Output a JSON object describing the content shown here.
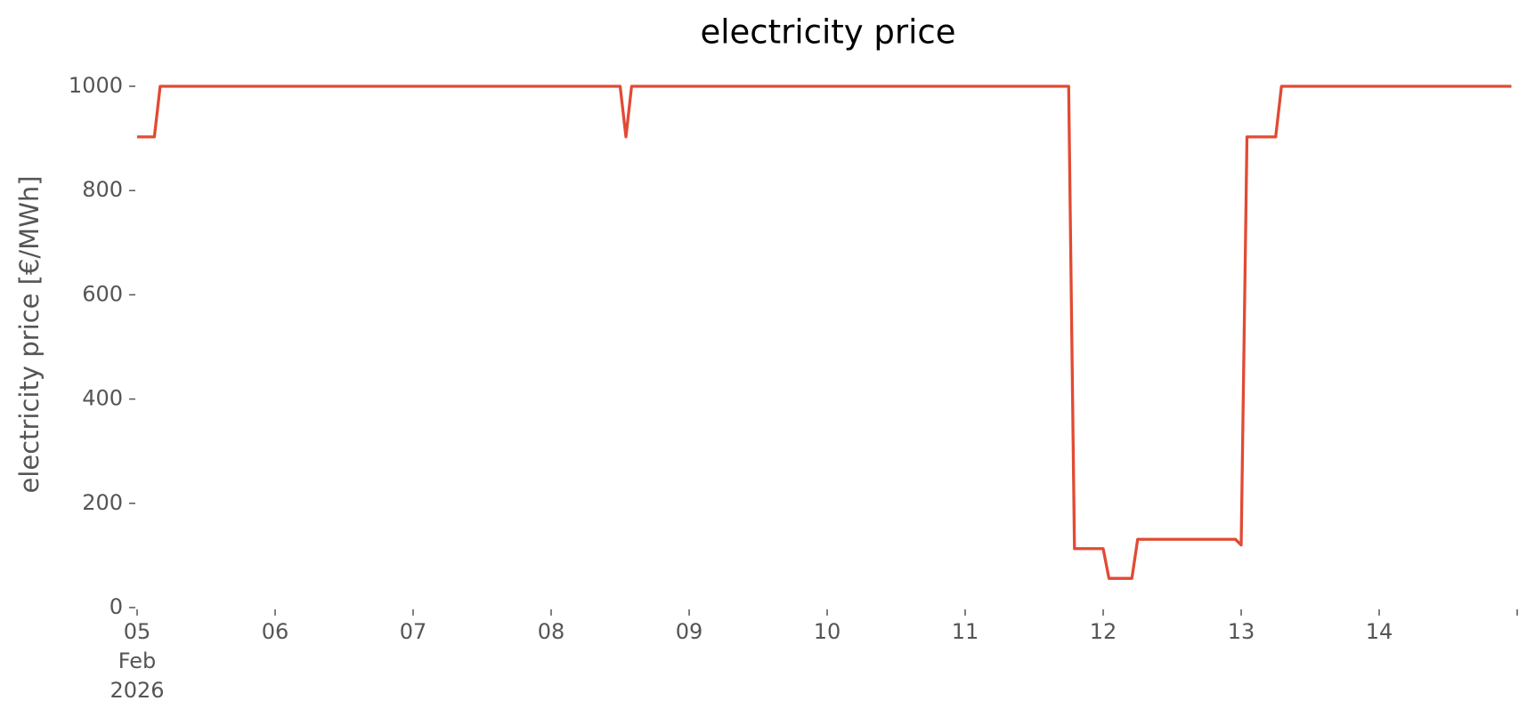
{
  "chart_data": {
    "type": "line",
    "title": "electricity price",
    "y_label": "electricity price [€/MWh]",
    "x": [
      5.0,
      5.125,
      5.167,
      8.5,
      8.542,
      8.583,
      11.75,
      11.792,
      12.0,
      12.042,
      12.208,
      12.25,
      12.958,
      13.0,
      13.042,
      13.25,
      13.292,
      14.958
    ],
    "series": [
      {
        "name": "electricity price",
        "color": "#e24a33",
        "values": [
          903,
          903,
          1000,
          1000,
          903,
          1000,
          1000,
          113,
          113,
          56,
          56,
          131,
          131,
          120,
          903,
          903,
          1000,
          1000
        ]
      }
    ],
    "xlim": [
      5,
      15
    ],
    "xticks": [
      {
        "value": 5,
        "label": "05\nFeb\n2026"
      },
      {
        "value": 6,
        "label": "06"
      },
      {
        "value": 7,
        "label": "07"
      },
      {
        "value": 8,
        "label": "08"
      },
      {
        "value": 9,
        "label": "09"
      },
      {
        "value": 10,
        "label": "10"
      },
      {
        "value": 11,
        "label": "11"
      },
      {
        "value": 12,
        "label": "12"
      },
      {
        "value": 13,
        "label": "13"
      },
      {
        "value": 14,
        "label": "14"
      },
      {
        "value": 15,
        "label": null
      }
    ],
    "ylim": [
      0,
      1000
    ],
    "yticks": [
      0,
      200,
      400,
      600,
      800,
      1000
    ],
    "grid": false
  }
}
